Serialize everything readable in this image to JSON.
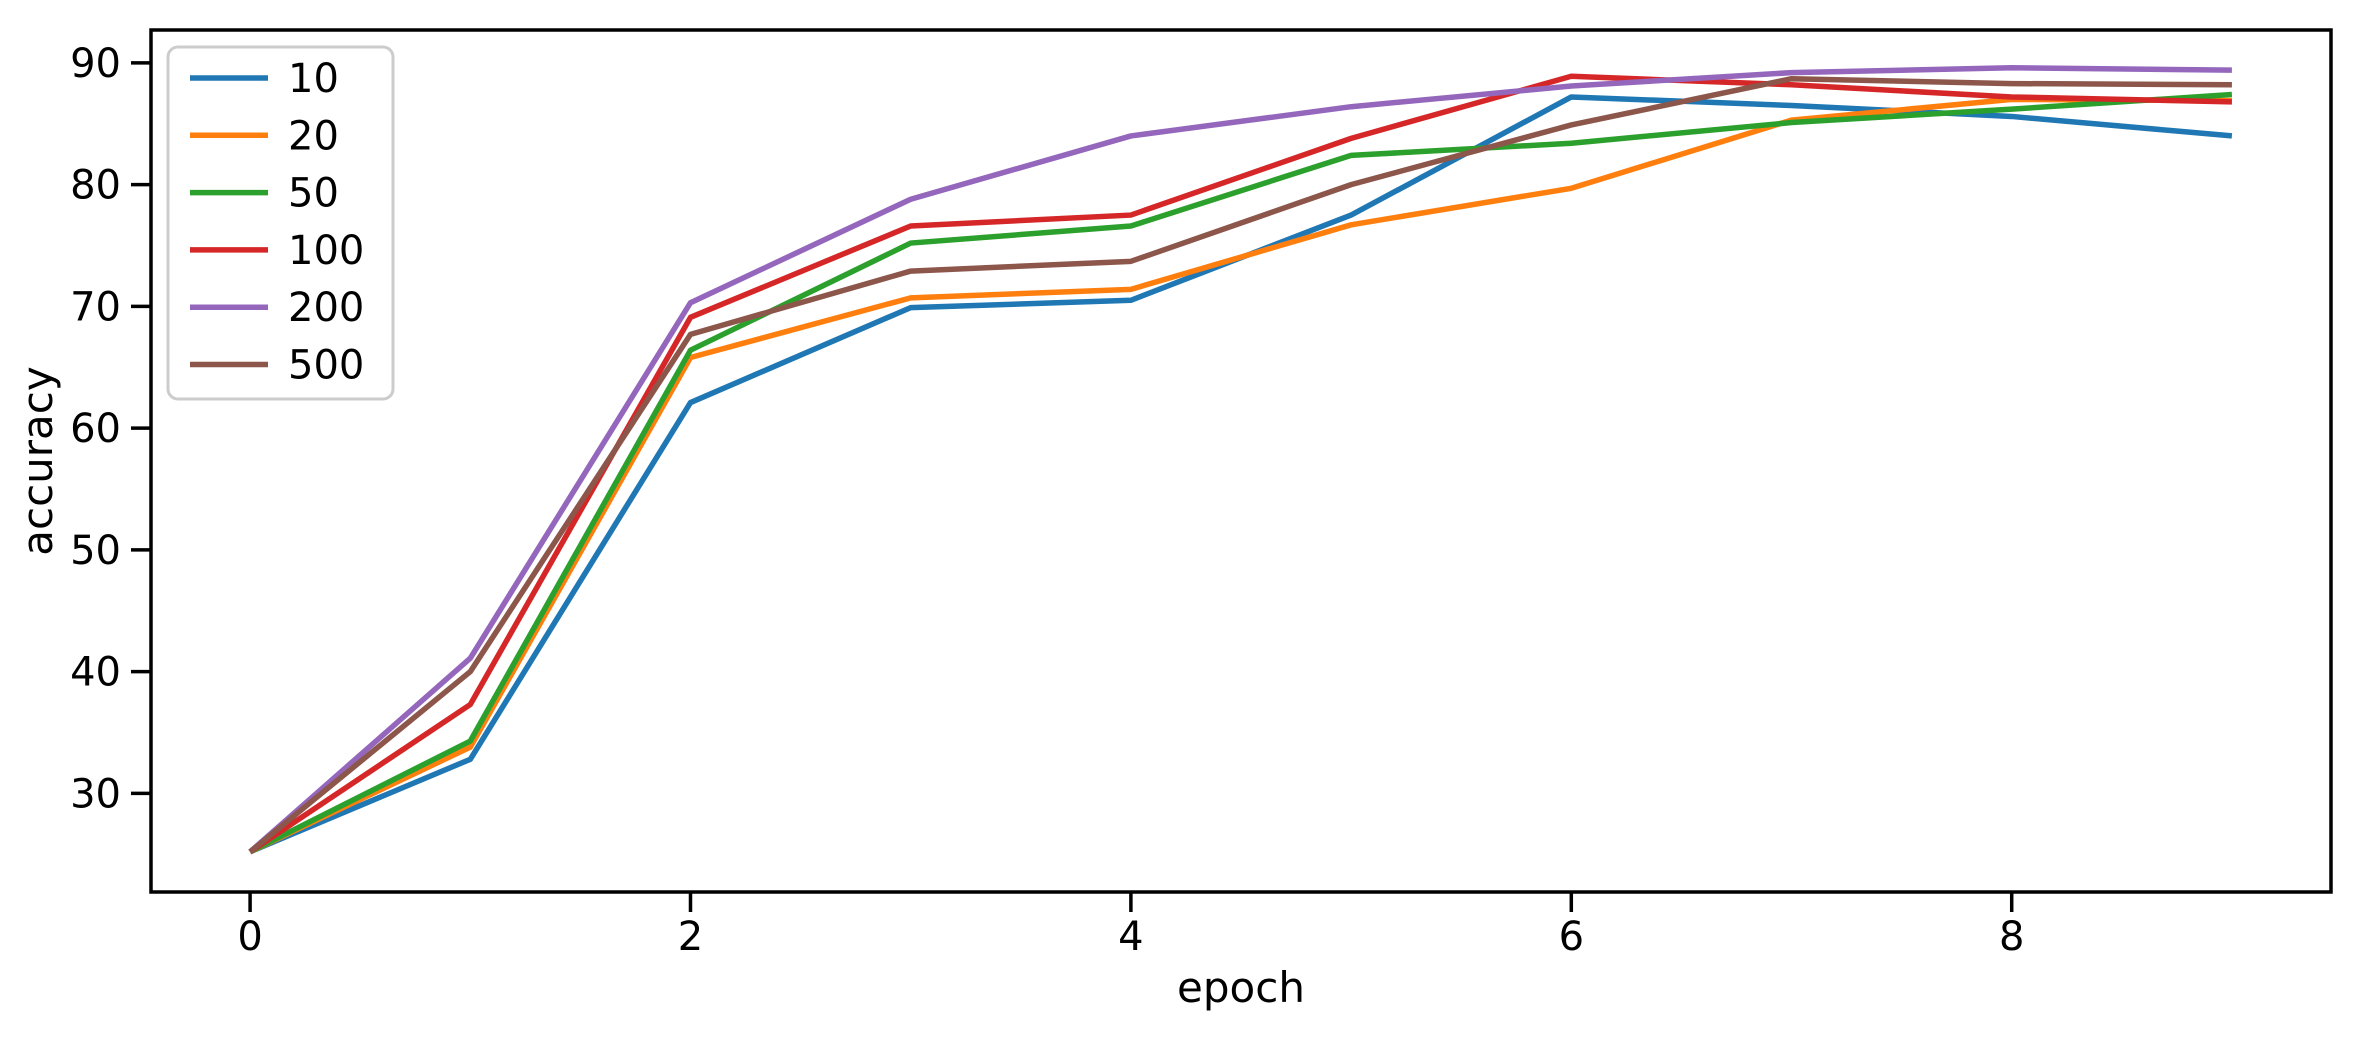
{
  "figure": {
    "background": "#ffffff",
    "frame_color": "#000000",
    "legend_border_color": "#cccccc"
  },
  "chart_data": {
    "type": "line",
    "title": "",
    "xlabel": "epoch",
    "ylabel": "accuracy",
    "x": [
      0,
      1,
      2,
      3,
      4,
      5,
      6,
      7,
      8,
      9
    ],
    "series": [
      {
        "name": "10",
        "color": "#1f77b4",
        "values": [
          25.2,
          32.8,
          62.1,
          69.9,
          70.5,
          77.5,
          87.2,
          86.5,
          85.6,
          84.0
        ]
      },
      {
        "name": "20",
        "color": "#ff7f0e",
        "values": [
          25.2,
          33.8,
          65.8,
          70.7,
          71.4,
          76.7,
          79.7,
          85.3,
          87.0,
          86.9
        ]
      },
      {
        "name": "50",
        "color": "#2ca02c",
        "values": [
          25.2,
          34.3,
          66.4,
          75.2,
          76.6,
          82.4,
          83.4,
          85.1,
          86.2,
          87.4
        ]
      },
      {
        "name": "100",
        "color": "#d62728",
        "values": [
          25.2,
          37.3,
          69.1,
          76.6,
          77.5,
          83.8,
          88.9,
          88.2,
          87.2,
          86.8
        ]
      },
      {
        "name": "200",
        "color": "#9467bd",
        "values": [
          25.2,
          41.1,
          70.3,
          78.8,
          84.0,
          86.4,
          88.1,
          89.2,
          89.6,
          89.4
        ]
      },
      {
        "name": "500",
        "color": "#8c564b",
        "values": [
          25.2,
          40.0,
          67.7,
          72.9,
          73.7,
          80.0,
          84.9,
          88.7,
          88.3,
          88.2
        ]
      }
    ],
    "xticks": [
      0,
      2,
      4,
      6,
      8
    ],
    "yticks": [
      30,
      40,
      50,
      60,
      70,
      80,
      90
    ],
    "xlim": [
      -0.45,
      9.45
    ],
    "ylim": [
      21.9,
      92.7
    ],
    "grid": false,
    "legend": {
      "position": "upper left",
      "entries": [
        "10",
        "20",
        "50",
        "100",
        "200",
        "500"
      ]
    }
  }
}
